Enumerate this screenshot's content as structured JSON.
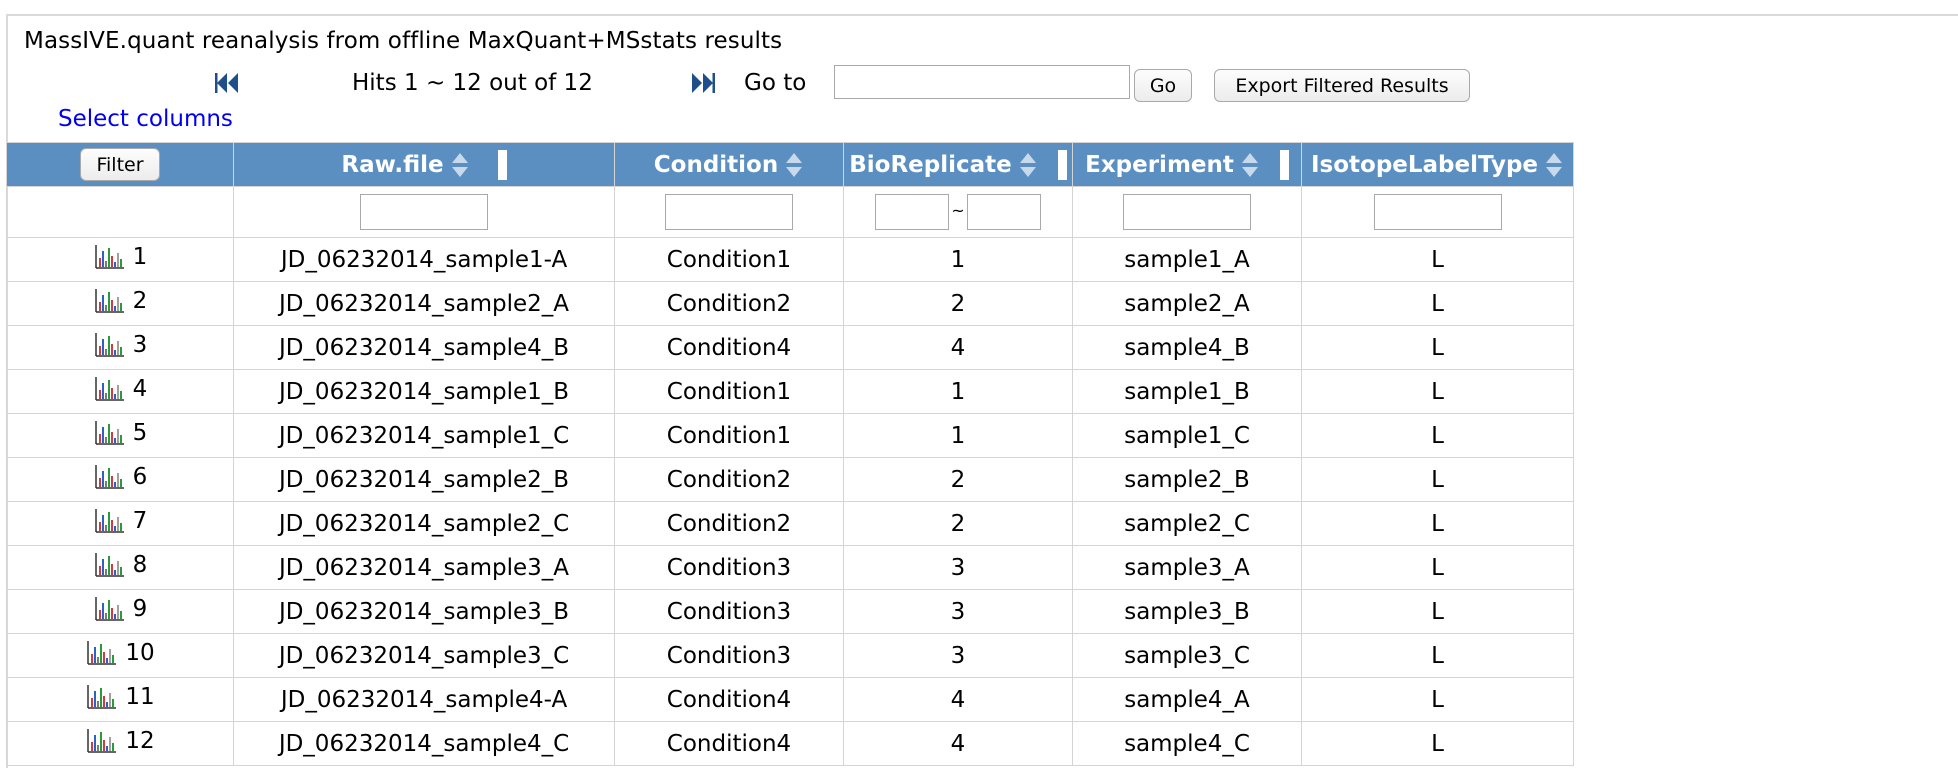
{
  "title": "MassIVE.quant reanalysis from offline MaxQuant+MSstats results",
  "pager": {
    "hits_text": "Hits 1 ~ 12 out of 12",
    "goto_label": "Go to",
    "goto_value": "",
    "go_label": "Go",
    "export_label": "Export Filtered Results"
  },
  "select_columns_label": "Select columns",
  "filter_label": "Filter",
  "columns": [
    "Raw.file",
    "Condition",
    "BioReplicate",
    "Experiment",
    "IsotopeLabelType"
  ],
  "rows": [
    {
      "n": "1",
      "raw": "JD_06232014_sample1-A",
      "cond": "Condition1",
      "bio": "1",
      "exp": "sample1_A",
      "iso": "L"
    },
    {
      "n": "2",
      "raw": "JD_06232014_sample2_A",
      "cond": "Condition2",
      "bio": "2",
      "exp": "sample2_A",
      "iso": "L"
    },
    {
      "n": "3",
      "raw": "JD_06232014_sample4_B",
      "cond": "Condition4",
      "bio": "4",
      "exp": "sample4_B",
      "iso": "L"
    },
    {
      "n": "4",
      "raw": "JD_06232014_sample1_B",
      "cond": "Condition1",
      "bio": "1",
      "exp": "sample1_B",
      "iso": "L"
    },
    {
      "n": "5",
      "raw": "JD_06232014_sample1_C",
      "cond": "Condition1",
      "bio": "1",
      "exp": "sample1_C",
      "iso": "L"
    },
    {
      "n": "6",
      "raw": "JD_06232014_sample2_B",
      "cond": "Condition2",
      "bio": "2",
      "exp": "sample2_B",
      "iso": "L"
    },
    {
      "n": "7",
      "raw": "JD_06232014_sample2_C",
      "cond": "Condition2",
      "bio": "2",
      "exp": "sample2_C",
      "iso": "L"
    },
    {
      "n": "8",
      "raw": "JD_06232014_sample3_A",
      "cond": "Condition3",
      "bio": "3",
      "exp": "sample3_A",
      "iso": "L"
    },
    {
      "n": "9",
      "raw": "JD_06232014_sample3_B",
      "cond": "Condition3",
      "bio": "3",
      "exp": "sample3_B",
      "iso": "L"
    },
    {
      "n": "10",
      "raw": "JD_06232014_sample3_C",
      "cond": "Condition3",
      "bio": "3",
      "exp": "sample3_C",
      "iso": "L"
    },
    {
      "n": "11",
      "raw": "JD_06232014_sample4-A",
      "cond": "Condition4",
      "bio": "4",
      "exp": "sample4_A",
      "iso": "L"
    },
    {
      "n": "12",
      "raw": "JD_06232014_sample4_C",
      "cond": "Condition4",
      "bio": "4",
      "exp": "sample4_C",
      "iso": "L"
    }
  ],
  "icons": {
    "nav_prev": "double-chevron-left-icon",
    "nav_next": "double-chevron-right-icon",
    "sort": "sort-updown-icon",
    "row_view": "spectrum-chart-icon"
  },
  "colors": {
    "header_bg": "#5b8fc2",
    "nav_arrow": "#1f4f8a",
    "link": "#0000ee"
  }
}
